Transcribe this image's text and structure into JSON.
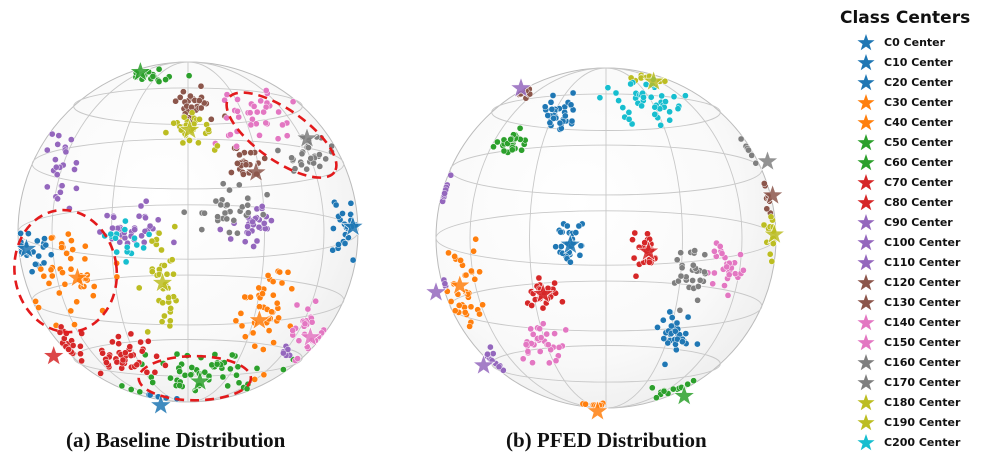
{
  "figure": {
    "captions": {
      "a": "(a) Baseline Distribution",
      "b": "(b) PFED Distribution"
    }
  },
  "legend": {
    "title": "Class Centers",
    "entries": [
      {
        "label": "C0 Center",
        "color": "#1f77b4"
      },
      {
        "label": "C10 Center",
        "color": "#1f77b4"
      },
      {
        "label": "C20 Center",
        "color": "#1f77b4"
      },
      {
        "label": "C30 Center",
        "color": "#ff7f0e"
      },
      {
        "label": "C40 Center",
        "color": "#ff7f0e"
      },
      {
        "label": "C50 Center",
        "color": "#2ca02c"
      },
      {
        "label": "C60 Center",
        "color": "#2ca02c"
      },
      {
        "label": "C70 Center",
        "color": "#d62728"
      },
      {
        "label": "C80 Center",
        "color": "#d62728"
      },
      {
        "label": "C90 Center",
        "color": "#9467bd"
      },
      {
        "label": "C100 Center",
        "color": "#9467bd"
      },
      {
        "label": "C110 Center",
        "color": "#9467bd"
      },
      {
        "label": "C120 Center",
        "color": "#8c564b"
      },
      {
        "label": "C130 Center",
        "color": "#8c564b"
      },
      {
        "label": "C140 Center",
        "color": "#e377c2"
      },
      {
        "label": "C150 Center",
        "color": "#e377c2"
      },
      {
        "label": "C160 Center",
        "color": "#7f7f7f"
      },
      {
        "label": "C170 Center",
        "color": "#7f7f7f"
      },
      {
        "label": "C180 Center",
        "color": "#bcbd22"
      },
      {
        "label": "C190 Center",
        "color": "#bcbd22"
      },
      {
        "label": "C200 Center",
        "color": "#17becf"
      }
    ]
  },
  "chart_data": [
    {
      "type": "scatter",
      "title": "(a) Baseline Distribution",
      "projection": "unit sphere (orthographic view)",
      "clusters": [
        {
          "name": "blue-left",
          "color": "#1f77b4",
          "x": -0.92,
          "y": -0.12,
          "n": 22,
          "sx": 0.05,
          "sy": 0.06
        },
        {
          "name": "blue-right",
          "color": "#1f77b4",
          "x": 0.92,
          "y": 0.02,
          "n": 26,
          "sx": 0.04,
          "sy": 0.13
        },
        {
          "name": "blue-bottom",
          "color": "#1f77b4",
          "x": -0.18,
          "y": -1.0,
          "n": 6,
          "sx": 0.07,
          "sy": 0.015
        },
        {
          "name": "orange-left",
          "color": "#ff7f0e",
          "x": -0.66,
          "y": -0.26,
          "n": 44,
          "sx": 0.13,
          "sy": 0.14
        },
        {
          "name": "orange-lower-right",
          "color": "#ff7f0e",
          "x": 0.45,
          "y": -0.47,
          "n": 42,
          "sx": 0.08,
          "sy": 0.14
        },
        {
          "name": "green-bottom",
          "color": "#2ca02c",
          "x": 0.05,
          "y": -0.82,
          "n": 55,
          "sx": 0.22,
          "sy": 0.07
        },
        {
          "name": "green-top",
          "color": "#2ca02c",
          "x": -0.24,
          "y": 0.91,
          "n": 16,
          "sx": 0.08,
          "sy": 0.03
        },
        {
          "name": "red-lower-left",
          "color": "#d62728",
          "x": -0.38,
          "y": -0.74,
          "n": 40,
          "sx": 0.08,
          "sy": 0.06
        },
        {
          "name": "red-bottom-left",
          "color": "#d62728",
          "x": -0.72,
          "y": -0.7,
          "n": 22,
          "sx": 0.05,
          "sy": 0.06
        },
        {
          "name": "purple-upper-left",
          "color": "#9467bd",
          "x": -0.74,
          "y": 0.39,
          "n": 24,
          "sx": 0.05,
          "sy": 0.12
        },
        {
          "name": "purple-center-left",
          "color": "#9467bd",
          "x": -0.3,
          "y": 0.03,
          "n": 34,
          "sx": 0.1,
          "sy": 0.06
        },
        {
          "name": "purple-center-right",
          "color": "#9467bd",
          "x": 0.4,
          "y": 0.05,
          "n": 30,
          "sx": 0.07,
          "sy": 0.06
        },
        {
          "name": "purple-bottom-right",
          "color": "#9467bd",
          "x": 0.59,
          "y": -0.7,
          "n": 6,
          "sx": 0.02,
          "sy": 0.03
        },
        {
          "name": "brown-top",
          "color": "#8c564b",
          "x": 0.03,
          "y": 0.75,
          "n": 30,
          "sx": 0.06,
          "sy": 0.05
        },
        {
          "name": "brown-upper-right",
          "color": "#8c564b",
          "x": 0.35,
          "y": 0.4,
          "n": 24,
          "sx": 0.05,
          "sy": 0.05
        },
        {
          "name": "pink-upper-right",
          "color": "#e377c2",
          "x": 0.42,
          "y": 0.68,
          "n": 36,
          "sx": 0.13,
          "sy": 0.08
        },
        {
          "name": "pink-right-lower",
          "color": "#e377c2",
          "x": 0.72,
          "y": -0.6,
          "n": 30,
          "sx": 0.05,
          "sy": 0.1
        },
        {
          "name": "gray-upper-right",
          "color": "#7f7f7f",
          "x": 0.7,
          "y": 0.45,
          "n": 30,
          "sx": 0.07,
          "sy": 0.08
        },
        {
          "name": "gray-center-right",
          "color": "#7f7f7f",
          "x": 0.24,
          "y": 0.12,
          "n": 30,
          "sx": 0.11,
          "sy": 0.07
        },
        {
          "name": "olive-top",
          "color": "#bcbd22",
          "x": 0.01,
          "y": 0.6,
          "n": 28,
          "sx": 0.08,
          "sy": 0.06
        },
        {
          "name": "olive-center",
          "color": "#bcbd22",
          "x": -0.15,
          "y": -0.3,
          "n": 36,
          "sx": 0.06,
          "sy": 0.14
        },
        {
          "name": "cyan-center-left",
          "color": "#17becf",
          "x": -0.36,
          "y": -0.04,
          "n": 16,
          "sx": 0.06,
          "sy": 0.07
        }
      ],
      "centers": [
        {
          "color": "#2ca02c",
          "x": -0.28,
          "y": 0.94
        },
        {
          "color": "#bcbd22",
          "x": 0.01,
          "y": 0.6
        },
        {
          "color": "#7f7f7f",
          "x": 0.7,
          "y": 0.55
        },
        {
          "color": "#8c564b",
          "x": 0.4,
          "y": 0.35
        },
        {
          "color": "#1f77b4",
          "x": 0.97,
          "y": 0.03
        },
        {
          "color": "#1f77b4",
          "x": -0.95,
          "y": -0.1
        },
        {
          "color": "#ff7f0e",
          "x": -0.65,
          "y": -0.27
        },
        {
          "color": "#bcbd22",
          "x": -0.15,
          "y": -0.3
        },
        {
          "color": "#ff7f0e",
          "x": 0.42,
          "y": -0.52
        },
        {
          "color": "#d62728",
          "x": -0.79,
          "y": -0.73
        },
        {
          "color": "#2ca02c",
          "x": 0.07,
          "y": -0.88
        },
        {
          "color": "#1f77b4",
          "x": -0.16,
          "y": -1.02
        },
        {
          "color": "#e377c2",
          "x": 0.72,
          "y": -0.62
        }
      ],
      "highlights": [
        {
          "name": "ellipse-upper-right",
          "cx": 0.55,
          "cy": 0.57,
          "rx": 0.38,
          "ry": 0.15,
          "angle_deg": -35
        },
        {
          "name": "ellipse-left",
          "cx": -0.72,
          "cy": -0.23,
          "rx": 0.3,
          "ry": 0.36,
          "angle_deg": 8
        },
        {
          "name": "ellipse-bottom",
          "cx": 0.04,
          "cy": -0.86,
          "rx": 0.33,
          "ry": 0.13,
          "angle_deg": 0
        }
      ]
    },
    {
      "type": "scatter",
      "title": "(b) PFED Distribution",
      "projection": "unit sphere (orthographic view)",
      "clusters": [
        {
          "name": "blue-top",
          "color": "#1f77b4",
          "x": -0.29,
          "y": 0.73,
          "n": 36,
          "sx": 0.06,
          "sy": 0.05
        },
        {
          "name": "blue-center",
          "color": "#1f77b4",
          "x": -0.21,
          "y": -0.04,
          "n": 30,
          "sx": 0.04,
          "sy": 0.07
        },
        {
          "name": "blue-lower-right",
          "color": "#1f77b4",
          "x": 0.4,
          "y": -0.57,
          "n": 34,
          "sx": 0.05,
          "sy": 0.07
        },
        {
          "name": "green-upper-left",
          "color": "#2ca02c",
          "x": -0.55,
          "y": 0.57,
          "n": 28,
          "sx": 0.05,
          "sy": 0.04
        },
        {
          "name": "green-bottom-right",
          "color": "#2ca02c",
          "x": 0.39,
          "y": -0.92,
          "n": 18,
          "sx": 0.09,
          "sy": 0.02
        },
        {
          "name": "red-center",
          "color": "#d62728",
          "x": 0.23,
          "y": -0.08,
          "n": 30,
          "sx": 0.04,
          "sy": 0.05
        },
        {
          "name": "red-left",
          "color": "#d62728",
          "x": -0.37,
          "y": -0.33,
          "n": 36,
          "sx": 0.05,
          "sy": 0.05
        },
        {
          "name": "purple-left",
          "color": "#9467bd",
          "x": -0.98,
          "y": 0.28,
          "n": 14,
          "sx": 0.02,
          "sy": 0.06
        },
        {
          "name": "purple-lower-left",
          "color": "#9467bd",
          "x": -0.69,
          "y": -0.73,
          "n": 14,
          "sx": 0.04,
          "sy": 0.03
        },
        {
          "name": "purple-far-left",
          "color": "#9467bd",
          "x": -1.0,
          "y": -0.3,
          "n": 4,
          "sx": 0.01,
          "sy": 0.02
        },
        {
          "name": "brown-top-left",
          "color": "#8c564b",
          "x": -0.5,
          "y": 0.87,
          "n": 10,
          "sx": 0.03,
          "sy": 0.02
        },
        {
          "name": "brown-right",
          "color": "#8c564b",
          "x": 0.97,
          "y": 0.25,
          "n": 8,
          "sx": 0.015,
          "sy": 0.04
        },
        {
          "name": "orange-left",
          "color": "#ff7f0e",
          "x": -0.85,
          "y": -0.28,
          "n": 34,
          "sx": 0.06,
          "sy": 0.13
        },
        {
          "name": "orange-bottom",
          "color": "#ff7f0e",
          "x": -0.05,
          "y": -1.0,
          "n": 10,
          "sx": 0.06,
          "sy": 0.015
        },
        {
          "name": "pink-lower-left",
          "color": "#e377c2",
          "x": -0.36,
          "y": -0.6,
          "n": 32,
          "sx": 0.07,
          "sy": 0.06
        },
        {
          "name": "pink-right",
          "color": "#e377c2",
          "x": 0.72,
          "y": -0.17,
          "n": 28,
          "sx": 0.04,
          "sy": 0.07
        },
        {
          "name": "gray-right",
          "color": "#7f7f7f",
          "x": 0.5,
          "y": -0.2,
          "n": 30,
          "sx": 0.05,
          "sy": 0.08
        },
        {
          "name": "gray-upper-right",
          "color": "#7f7f7f",
          "x": 0.91,
          "y": 0.57,
          "n": 10,
          "sx": 0.03,
          "sy": 0.05
        },
        {
          "name": "olive-right",
          "color": "#bcbd22",
          "x": 0.97,
          "y": 0.02,
          "n": 14,
          "sx": 0.02,
          "sy": 0.07
        },
        {
          "name": "olive-top",
          "color": "#bcbd22",
          "x": 0.26,
          "y": 0.93,
          "n": 10,
          "sx": 0.06,
          "sy": 0.015
        },
        {
          "name": "cyan-top",
          "color": "#17becf",
          "x": 0.27,
          "y": 0.8,
          "n": 42,
          "sx": 0.11,
          "sy": 0.06
        }
      ],
      "centers": [
        {
          "color": "#9467bd",
          "x": -0.5,
          "y": 0.88
        },
        {
          "color": "#bcbd22",
          "x": 0.28,
          "y": 0.92
        },
        {
          "color": "#7f7f7f",
          "x": 0.95,
          "y": 0.45
        },
        {
          "color": "#8c564b",
          "x": 0.98,
          "y": 0.25
        },
        {
          "color": "#bcbd22",
          "x": 0.99,
          "y": 0.02
        },
        {
          "color": "#1f77b4",
          "x": -0.21,
          "y": -0.04
        },
        {
          "color": "#d62728",
          "x": 0.25,
          "y": -0.08
        },
        {
          "color": "#d62728",
          "x": -0.37,
          "y": -0.33
        },
        {
          "color": "#ff7f0e",
          "x": -0.86,
          "y": -0.28
        },
        {
          "color": "#9467bd",
          "x": -1.0,
          "y": -0.32
        },
        {
          "color": "#9467bd",
          "x": -0.72,
          "y": -0.75
        },
        {
          "color": "#ff7f0e",
          "x": -0.05,
          "y": -1.02
        },
        {
          "color": "#2ca02c",
          "x": 0.46,
          "y": -0.93
        }
      ],
      "highlights": []
    }
  ]
}
